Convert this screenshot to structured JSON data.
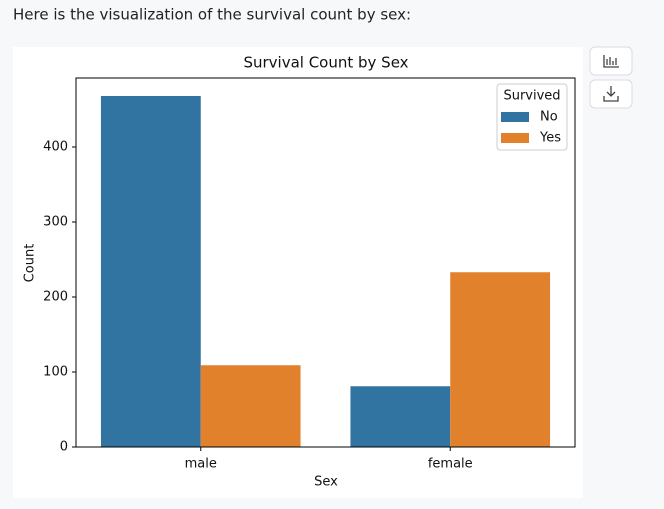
{
  "message": "Here is the visualization of the survival count by sex:",
  "chart_data": {
    "type": "bar",
    "title": "Survival Count by Sex",
    "x_label": "Sex",
    "y_label": "Count",
    "categories": [
      "male",
      "female"
    ],
    "legend_title": "Survived",
    "legend": "upper right",
    "series": [
      {
        "name": "No",
        "color": "#3274a1",
        "values": [
          468,
          81
        ]
      },
      {
        "name": "Yes",
        "color": "#e1812c",
        "values": [
          109,
          233
        ]
      }
    ],
    "ylim": [
      0,
      492
    ],
    "yticks": [
      0,
      100,
      200,
      300,
      400
    ]
  }
}
